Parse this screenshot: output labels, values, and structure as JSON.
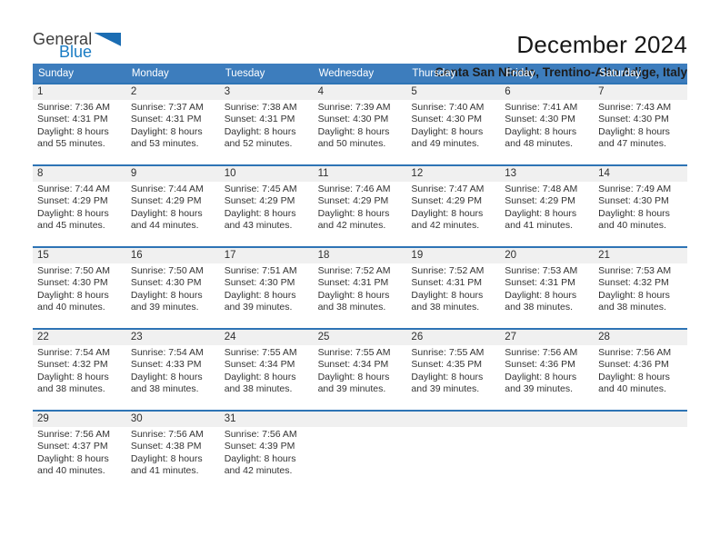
{
  "logo": {
    "word_top": "General",
    "word_bottom": "Blue",
    "mark": "blue-triangle"
  },
  "header": {
    "title": "December 2024",
    "subtitle": "Centa San Nicolo, Trentino-Alto Adige, Italy"
  },
  "weekday_headers": [
    "Sunday",
    "Monday",
    "Tuesday",
    "Wednesday",
    "Thursday",
    "Friday",
    "Saturday"
  ],
  "labels": {
    "sunrise": "Sunrise:",
    "sunset": "Sunset:",
    "daylight": "Daylight:",
    "hours": "hours",
    "and": "and",
    "minutes": "minutes."
  },
  "colors": {
    "header_bar": "#3d7dbd",
    "row_divider": "#2e74b5",
    "day_strip": "#f0f0f0",
    "logo_blue": "#1a7cc4",
    "triangle_blue": "#1b6db3"
  },
  "calendar": {
    "weeks": [
      [
        {
          "day": 1,
          "sunrise": "7:36 AM",
          "sunset": "4:31 PM",
          "daylight_hours": 8,
          "daylight_minutes": 55
        },
        {
          "day": 2,
          "sunrise": "7:37 AM",
          "sunset": "4:31 PM",
          "daylight_hours": 8,
          "daylight_minutes": 53
        },
        {
          "day": 3,
          "sunrise": "7:38 AM",
          "sunset": "4:31 PM",
          "daylight_hours": 8,
          "daylight_minutes": 52
        },
        {
          "day": 4,
          "sunrise": "7:39 AM",
          "sunset": "4:30 PM",
          "daylight_hours": 8,
          "daylight_minutes": 50
        },
        {
          "day": 5,
          "sunrise": "7:40 AM",
          "sunset": "4:30 PM",
          "daylight_hours": 8,
          "daylight_minutes": 49
        },
        {
          "day": 6,
          "sunrise": "7:41 AM",
          "sunset": "4:30 PM",
          "daylight_hours": 8,
          "daylight_minutes": 48
        },
        {
          "day": 7,
          "sunrise": "7:43 AM",
          "sunset": "4:30 PM",
          "daylight_hours": 8,
          "daylight_minutes": 47
        }
      ],
      [
        {
          "day": 8,
          "sunrise": "7:44 AM",
          "sunset": "4:29 PM",
          "daylight_hours": 8,
          "daylight_minutes": 45
        },
        {
          "day": 9,
          "sunrise": "7:44 AM",
          "sunset": "4:29 PM",
          "daylight_hours": 8,
          "daylight_minutes": 44
        },
        {
          "day": 10,
          "sunrise": "7:45 AM",
          "sunset": "4:29 PM",
          "daylight_hours": 8,
          "daylight_minutes": 43
        },
        {
          "day": 11,
          "sunrise": "7:46 AM",
          "sunset": "4:29 PM",
          "daylight_hours": 8,
          "daylight_minutes": 42
        },
        {
          "day": 12,
          "sunrise": "7:47 AM",
          "sunset": "4:29 PM",
          "daylight_hours": 8,
          "daylight_minutes": 42
        },
        {
          "day": 13,
          "sunrise": "7:48 AM",
          "sunset": "4:29 PM",
          "daylight_hours": 8,
          "daylight_minutes": 41
        },
        {
          "day": 14,
          "sunrise": "7:49 AM",
          "sunset": "4:30 PM",
          "daylight_hours": 8,
          "daylight_minutes": 40
        }
      ],
      [
        {
          "day": 15,
          "sunrise": "7:50 AM",
          "sunset": "4:30 PM",
          "daylight_hours": 8,
          "daylight_minutes": 40
        },
        {
          "day": 16,
          "sunrise": "7:50 AM",
          "sunset": "4:30 PM",
          "daylight_hours": 8,
          "daylight_minutes": 39
        },
        {
          "day": 17,
          "sunrise": "7:51 AM",
          "sunset": "4:30 PM",
          "daylight_hours": 8,
          "daylight_minutes": 39
        },
        {
          "day": 18,
          "sunrise": "7:52 AM",
          "sunset": "4:31 PM",
          "daylight_hours": 8,
          "daylight_minutes": 38
        },
        {
          "day": 19,
          "sunrise": "7:52 AM",
          "sunset": "4:31 PM",
          "daylight_hours": 8,
          "daylight_minutes": 38
        },
        {
          "day": 20,
          "sunrise": "7:53 AM",
          "sunset": "4:31 PM",
          "daylight_hours": 8,
          "daylight_minutes": 38
        },
        {
          "day": 21,
          "sunrise": "7:53 AM",
          "sunset": "4:32 PM",
          "daylight_hours": 8,
          "daylight_minutes": 38
        }
      ],
      [
        {
          "day": 22,
          "sunrise": "7:54 AM",
          "sunset": "4:32 PM",
          "daylight_hours": 8,
          "daylight_minutes": 38
        },
        {
          "day": 23,
          "sunrise": "7:54 AM",
          "sunset": "4:33 PM",
          "daylight_hours": 8,
          "daylight_minutes": 38
        },
        {
          "day": 24,
          "sunrise": "7:55 AM",
          "sunset": "4:34 PM",
          "daylight_hours": 8,
          "daylight_minutes": 38
        },
        {
          "day": 25,
          "sunrise": "7:55 AM",
          "sunset": "4:34 PM",
          "daylight_hours": 8,
          "daylight_minutes": 39
        },
        {
          "day": 26,
          "sunrise": "7:55 AM",
          "sunset": "4:35 PM",
          "daylight_hours": 8,
          "daylight_minutes": 39
        },
        {
          "day": 27,
          "sunrise": "7:56 AM",
          "sunset": "4:36 PM",
          "daylight_hours": 8,
          "daylight_minutes": 39
        },
        {
          "day": 28,
          "sunrise": "7:56 AM",
          "sunset": "4:36 PM",
          "daylight_hours": 8,
          "daylight_minutes": 40
        }
      ],
      [
        {
          "day": 29,
          "sunrise": "7:56 AM",
          "sunset": "4:37 PM",
          "daylight_hours": 8,
          "daylight_minutes": 40
        },
        {
          "day": 30,
          "sunrise": "7:56 AM",
          "sunset": "4:38 PM",
          "daylight_hours": 8,
          "daylight_minutes": 41
        },
        {
          "day": 31,
          "sunrise": "7:56 AM",
          "sunset": "4:39 PM",
          "daylight_hours": 8,
          "daylight_minutes": 42
        },
        null,
        null,
        null,
        null
      ]
    ]
  }
}
